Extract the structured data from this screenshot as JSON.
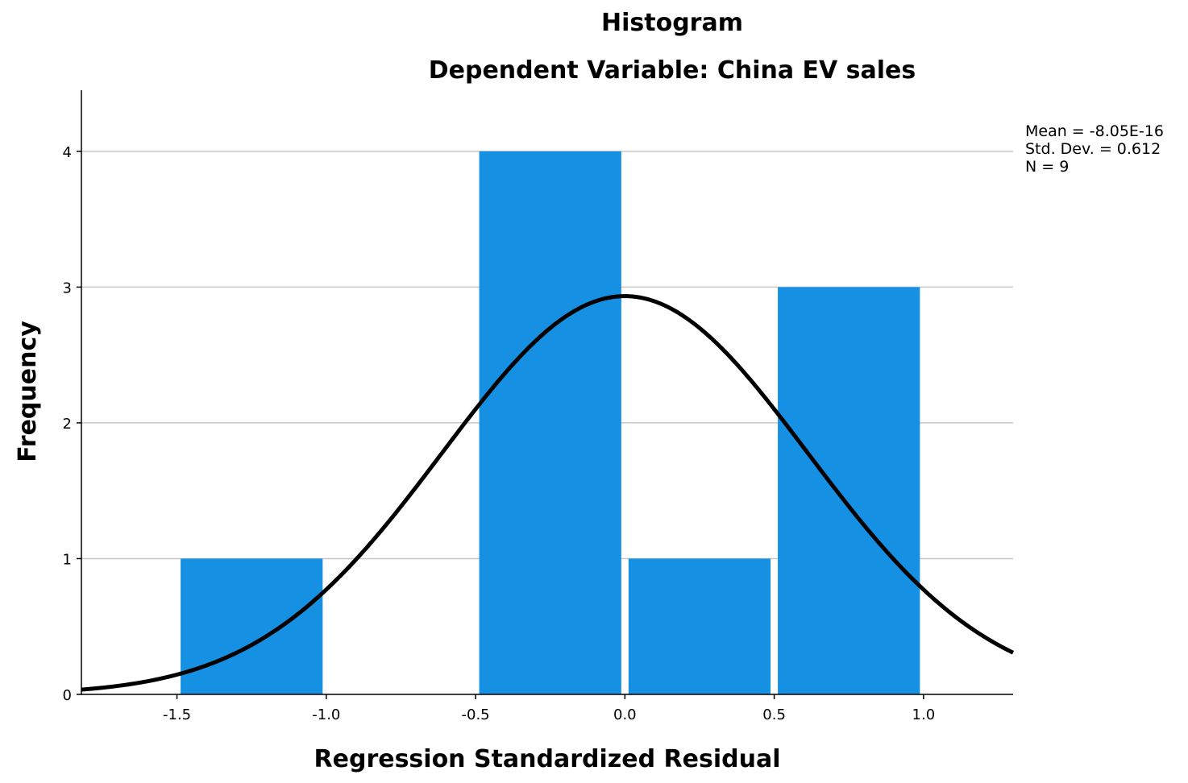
{
  "chart_data": {
    "type": "bar",
    "title": "Histogram",
    "subtitle": "Dependent Variable: China EV sales",
    "xlabel": "Regression Standardized Residual",
    "ylabel": "Frequency",
    "xlim": [
      -1.82,
      1.3
    ],
    "ylim": [
      0,
      4.45
    ],
    "x_ticks": [
      "-1.5",
      "-1.0",
      "-0.5",
      "0.0",
      "0.5",
      "1.0"
    ],
    "y_ticks": [
      "0",
      "1",
      "2",
      "3",
      "4"
    ],
    "grid": "horizontal",
    "bins": [
      {
        "start": -1.5,
        "end": -1.0,
        "count": 1
      },
      {
        "start": -1.0,
        "end": -0.5,
        "count": 0
      },
      {
        "start": -0.5,
        "end": 0.0,
        "count": 4
      },
      {
        "start": 0.0,
        "end": 0.5,
        "count": 1
      },
      {
        "start": 0.5,
        "end": 1.0,
        "count": 3
      }
    ],
    "normal_curve": {
      "mean": 0.0,
      "std_dev": 0.612,
      "n": 9,
      "bin_width": 0.5
    },
    "stats_box": {
      "mean": "Mean = -8.05E-16",
      "std_dev": "Std. Dev. = 0.612",
      "n": "N = 9",
      "position": "top-right"
    },
    "colors": {
      "bar": "#1590e3",
      "curve": "#000000",
      "grid": "#c8c8c8",
      "axis": "#000000"
    }
  }
}
